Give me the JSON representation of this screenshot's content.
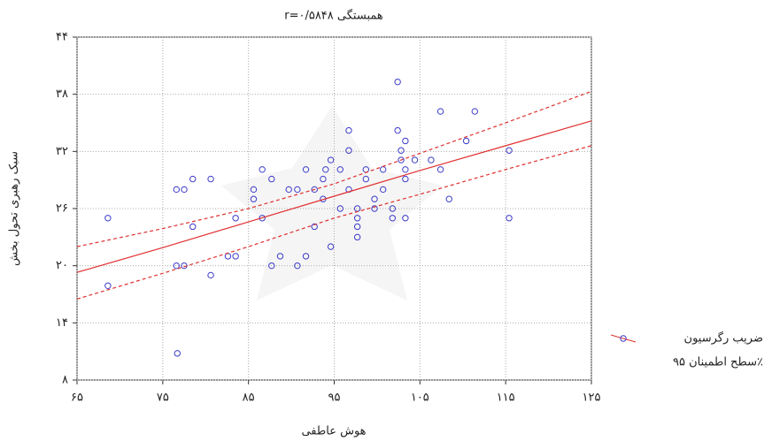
{
  "chart_data": {
    "type": "scatter",
    "title": "r=۰/۵۸۴۸ همبستگی",
    "x_label": "هوش عاطفی",
    "y_label": "سبک رهبری تحول بخش",
    "xlim": [
      65,
      125
    ],
    "ylim": [
      8,
      44
    ],
    "xticks": [
      {
        "value": 65,
        "label": "۶۵"
      },
      {
        "value": 75,
        "label": "۷۵"
      },
      {
        "value": 85,
        "label": "۸۵"
      },
      {
        "value": 95,
        "label": "۹۵"
      },
      {
        "value": 105,
        "label": "۱۰۵"
      },
      {
        "value": 115,
        "label": "۱۱۵"
      },
      {
        "value": 125,
        "label": "۱۲۵"
      }
    ],
    "yticks": [
      {
        "value": 8,
        "label": "۸"
      },
      {
        "value": 14,
        "label": "۱۴"
      },
      {
        "value": 20,
        "label": "۲۰"
      },
      {
        "value": 26,
        "label": "۲۶"
      },
      {
        "value": 32,
        "label": "۳۲"
      },
      {
        "value": 38,
        "label": "۳۸"
      },
      {
        "value": 44,
        "label": "۴۴"
      }
    ],
    "grid": true,
    "legend": "right",
    "series": [
      {
        "name": "ضریب رگرسیون",
        "color": "#3c3cc8",
        "x": [
          68.6,
          68.6,
          76.6,
          77.5,
          78.5,
          80.6,
          76.6,
          77.5,
          78.5,
          80.6,
          82.6,
          83.5,
          83.5,
          76.7,
          85.6,
          85.6,
          86.6,
          86.6,
          87.7,
          87.7,
          88.7,
          89.7,
          90.7,
          90.7,
          91.7,
          91.7,
          92.7,
          92.7,
          93.7,
          93.7,
          94.6,
          94.6,
          95.7,
          95.7,
          96.7,
          96.7,
          96.7,
          97.7,
          97.7,
          97.7,
          97.7,
          98.7,
          99.7,
          99.7,
          100.7,
          100.7,
          101.8,
          101.8,
          102.8,
          102.8,
          103.3,
          103.3,
          102.4,
          102.4,
          103.3,
          104.4,
          106.3,
          107.4,
          107.4,
          108.4,
          110.4,
          111.4,
          115.4,
          115.4,
          98.7,
          94.0,
          103.3
        ],
        "values": [
          25.0,
          17.9,
          28.0,
          28.0,
          29.1,
          29.1,
          20.0,
          20.0,
          24.1,
          19.0,
          21.0,
          21.0,
          25.0,
          10.8,
          28.0,
          27.0,
          30.1,
          25.0,
          29.1,
          20.0,
          21.0,
          28.0,
          20.0,
          28.0,
          21.0,
          30.1,
          28.0,
          24.1,
          29.1,
          27.0,
          31.1,
          22.0,
          30.1,
          26.0,
          34.2,
          32.1,
          28.0,
          26.0,
          25.0,
          24.1,
          23.0,
          30.1,
          27.0,
          26.0,
          30.1,
          28.0,
          26.0,
          25.0,
          32.1,
          31.1,
          29.1,
          25.0,
          39.3,
          34.2,
          33.1,
          31.1,
          31.1,
          36.2,
          30.1,
          27.0,
          33.1,
          36.2,
          32.1,
          25.0,
          29.1,
          30.1,
          30.1
        ]
      }
    ],
    "fit": {
      "color": "#e03030",
      "x": [
        65,
        75,
        85,
        95,
        105,
        115,
        125
      ],
      "values": [
        19.3,
        21.9,
        24.6,
        27.3,
        30.0,
        32.6,
        35.2
      ]
    },
    "confidence": {
      "name": "سطح اطمینان ۹۵٪",
      "color": "#e03030",
      "x": [
        65,
        75,
        85,
        95,
        105,
        115,
        125
      ],
      "upper": [
        22.0,
        23.9,
        26.0,
        28.6,
        31.8,
        35.0,
        38.3
      ],
      "lower": [
        16.5,
        19.2,
        22.0,
        25.0,
        27.5,
        30.1,
        32.6
      ]
    }
  }
}
